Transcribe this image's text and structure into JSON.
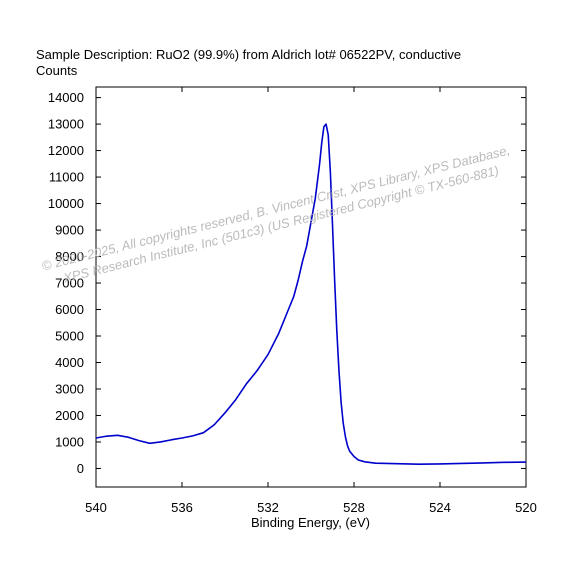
{
  "chart_data": {
    "type": "line",
    "title": "Sample Description:  RuO2 (99.9%) from Aldrich lot# 06522PV, conductive",
    "ylabel": "Counts",
    "xlabel": "Binding Energy, (eV)",
    "xlim": [
      540,
      520
    ],
    "x_reversed": true,
    "ylim": [
      -700,
      14400
    ],
    "x_ticks": [
      540,
      536,
      532,
      528,
      524,
      520
    ],
    "y_ticks": [
      0,
      1000,
      2000,
      3000,
      4000,
      5000,
      6000,
      7000,
      8000,
      9000,
      10000,
      11000,
      12000,
      13000,
      14000
    ],
    "series": [
      {
        "color": "#0000cc",
        "x": [
          540.0,
          539.5,
          539.0,
          538.5,
          538.0,
          537.5,
          537.0,
          536.5,
          536.0,
          535.5,
          535.0,
          534.5,
          534.0,
          533.5,
          533.0,
          532.5,
          532.0,
          531.5,
          531.0,
          530.8,
          530.6,
          530.4,
          530.2,
          530.0,
          529.8,
          529.6,
          529.5,
          529.4,
          529.3,
          529.2,
          529.1,
          529.0,
          528.9,
          528.8,
          528.7,
          528.6,
          528.5,
          528.4,
          528.3,
          528.2,
          528.0,
          527.8,
          527.5,
          527.0,
          526.0,
          525.0,
          524.0,
          523.0,
          522.0,
          521.0,
          520.0
        ],
        "y": [
          1150,
          1220,
          1250,
          1180,
          1050,
          950,
          1000,
          1080,
          1150,
          1230,
          1350,
          1650,
          2100,
          2600,
          3200,
          3700,
          4300,
          5100,
          6100,
          6500,
          7100,
          7800,
          8400,
          9300,
          10200,
          11500,
          12300,
          12900,
          13000,
          12600,
          11200,
          9200,
          7100,
          5200,
          3700,
          2500,
          1700,
          1200,
          850,
          650,
          450,
          320,
          250,
          200,
          180,
          160,
          170,
          190,
          210,
          230,
          240
        ]
      }
    ]
  },
  "watermark": {
    "line1": "©  2020-2025,  All copyrights reserved,   B. Vincent Crist,  XPS Library, XPS Database,",
    "line2": "XPS Research Institute, Inc (501c3)   (US Registered Copyright © TX-560-881)"
  }
}
